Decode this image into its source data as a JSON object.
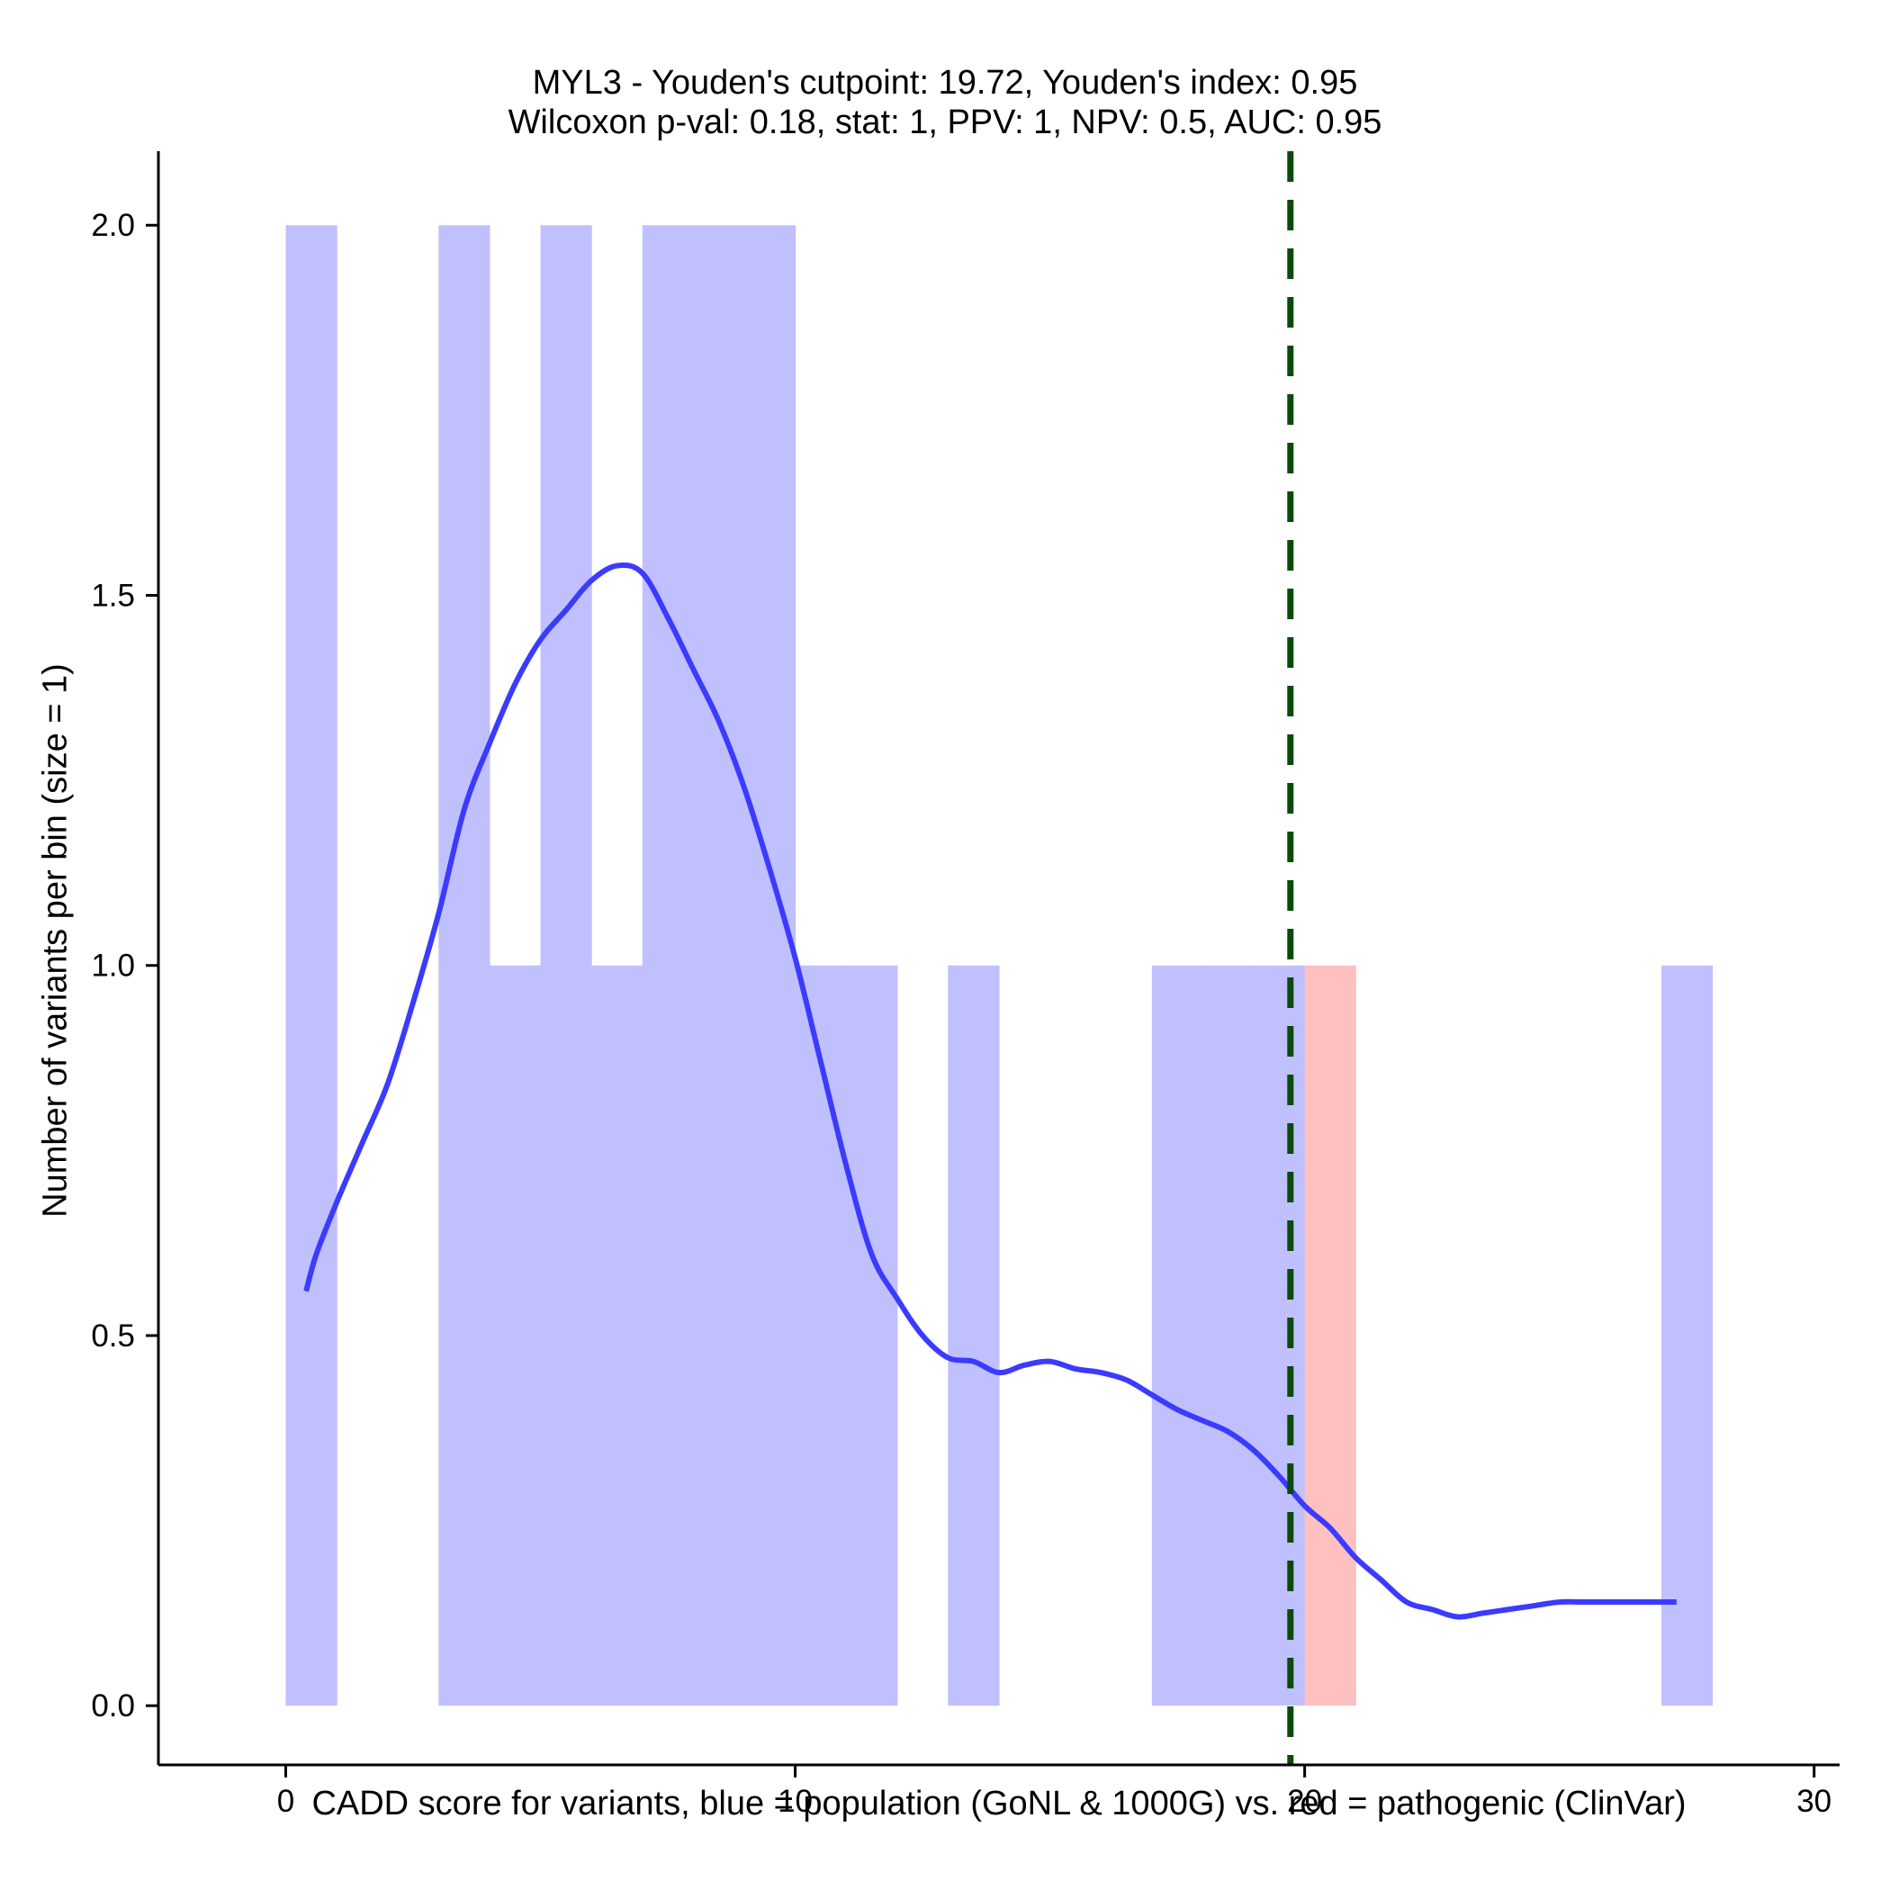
{
  "chart_data": {
    "type": "histogram",
    "title": "MYL3 - Youden's cutpoint: 19.72, Youden's index: 0.95",
    "subtitle": "Wilcoxon p-val: 0.18, stat: 1, PPV: 1, NPV: 0.5, AUC: 0.95",
    "xlabel": "CADD score for variants, blue = population (GoNL & 1000G) vs. red = pathogenic (ClinVar)",
    "ylabel": "Number of variants per bin (size = 1)",
    "xlim": [
      -2.5,
      30.5
    ],
    "ylim": [
      -0.08,
      2.1
    ],
    "xticks": [
      0,
      10,
      20,
      30
    ],
    "xtick_labels": [
      "0",
      "10",
      "20",
      "30"
    ],
    "yticks": [
      0.0,
      0.5,
      1.0,
      1.5,
      2.0
    ],
    "ytick_labels": [
      "0.0",
      "0.5",
      "1.0",
      "1.5",
      "2.0"
    ],
    "grid": false,
    "bin_size": 1,
    "series": [
      {
        "color": "#c0c0ff",
        "bins": [
          {
            "x0": 0,
            "x1": 1,
            "count": 2
          },
          {
            "x0": 3,
            "x1": 4,
            "count": 2
          },
          {
            "x0": 4,
            "x1": 5,
            "count": 1
          },
          {
            "x0": 5,
            "x1": 6,
            "count": 2
          },
          {
            "x0": 6,
            "x1": 7,
            "count": 1
          },
          {
            "x0": 7,
            "x1": 8,
            "count": 2
          },
          {
            "x0": 8,
            "x1": 9,
            "count": 2
          },
          {
            "x0": 9,
            "x1": 10,
            "count": 2
          },
          {
            "x0": 10,
            "x1": 11,
            "count": 1
          },
          {
            "x0": 11,
            "x1": 12,
            "count": 1
          },
          {
            "x0": 13,
            "x1": 14,
            "count": 1
          },
          {
            "x0": 17,
            "x1": 18,
            "count": 1
          },
          {
            "x0": 18,
            "x1": 19,
            "count": 1
          },
          {
            "x0": 19,
            "x1": 20,
            "count": 1
          },
          {
            "x0": 27,
            "x1": 28,
            "count": 1
          }
        ]
      },
      {
        "color": "#ffc0c0",
        "bins": [
          {
            "x0": 20,
            "x1": 21,
            "count": 1
          }
        ]
      }
    ],
    "density": {
      "color": "#3b3bff",
      "x": [
        0.4,
        0.6,
        1.0,
        1.5,
        2.0,
        2.5,
        3.0,
        3.5,
        4.0,
        4.5,
        5.0,
        5.5,
        6.0,
        6.5,
        7.0,
        7.5,
        8.0,
        8.5,
        9.0,
        9.5,
        10.0,
        10.5,
        11.0,
        11.5,
        12.0,
        12.5,
        13.0,
        13.5,
        14.0,
        14.5,
        15.0,
        15.5,
        16.0,
        16.5,
        17.0,
        17.5,
        18.0,
        18.5,
        19.0,
        19.5,
        20.0,
        20.5,
        21.0,
        21.5,
        22.0,
        22.5,
        23.0,
        23.5,
        24.0,
        24.5,
        25.0,
        25.5,
        26.0,
        26.5,
        27.0,
        27.3
      ],
      "y": [
        0.56,
        0.61,
        0.68,
        0.76,
        0.84,
        0.95,
        1.07,
        1.21,
        1.3,
        1.38,
        1.44,
        1.48,
        1.52,
        1.54,
        1.53,
        1.47,
        1.4,
        1.33,
        1.24,
        1.13,
        1.01,
        0.87,
        0.73,
        0.61,
        0.55,
        0.5,
        0.47,
        0.465,
        0.45,
        0.46,
        0.465,
        0.455,
        0.45,
        0.44,
        0.42,
        0.4,
        0.385,
        0.37,
        0.345,
        0.31,
        0.27,
        0.24,
        0.2,
        0.17,
        0.14,
        0.13,
        0.12,
        0.125,
        0.13,
        0.135,
        0.14,
        0.14,
        0.14,
        0.14,
        0.14,
        0.14
      ]
    },
    "cutpoint": {
      "x": 19.72,
      "color": "#0a4a0a",
      "style": "dashed"
    }
  }
}
